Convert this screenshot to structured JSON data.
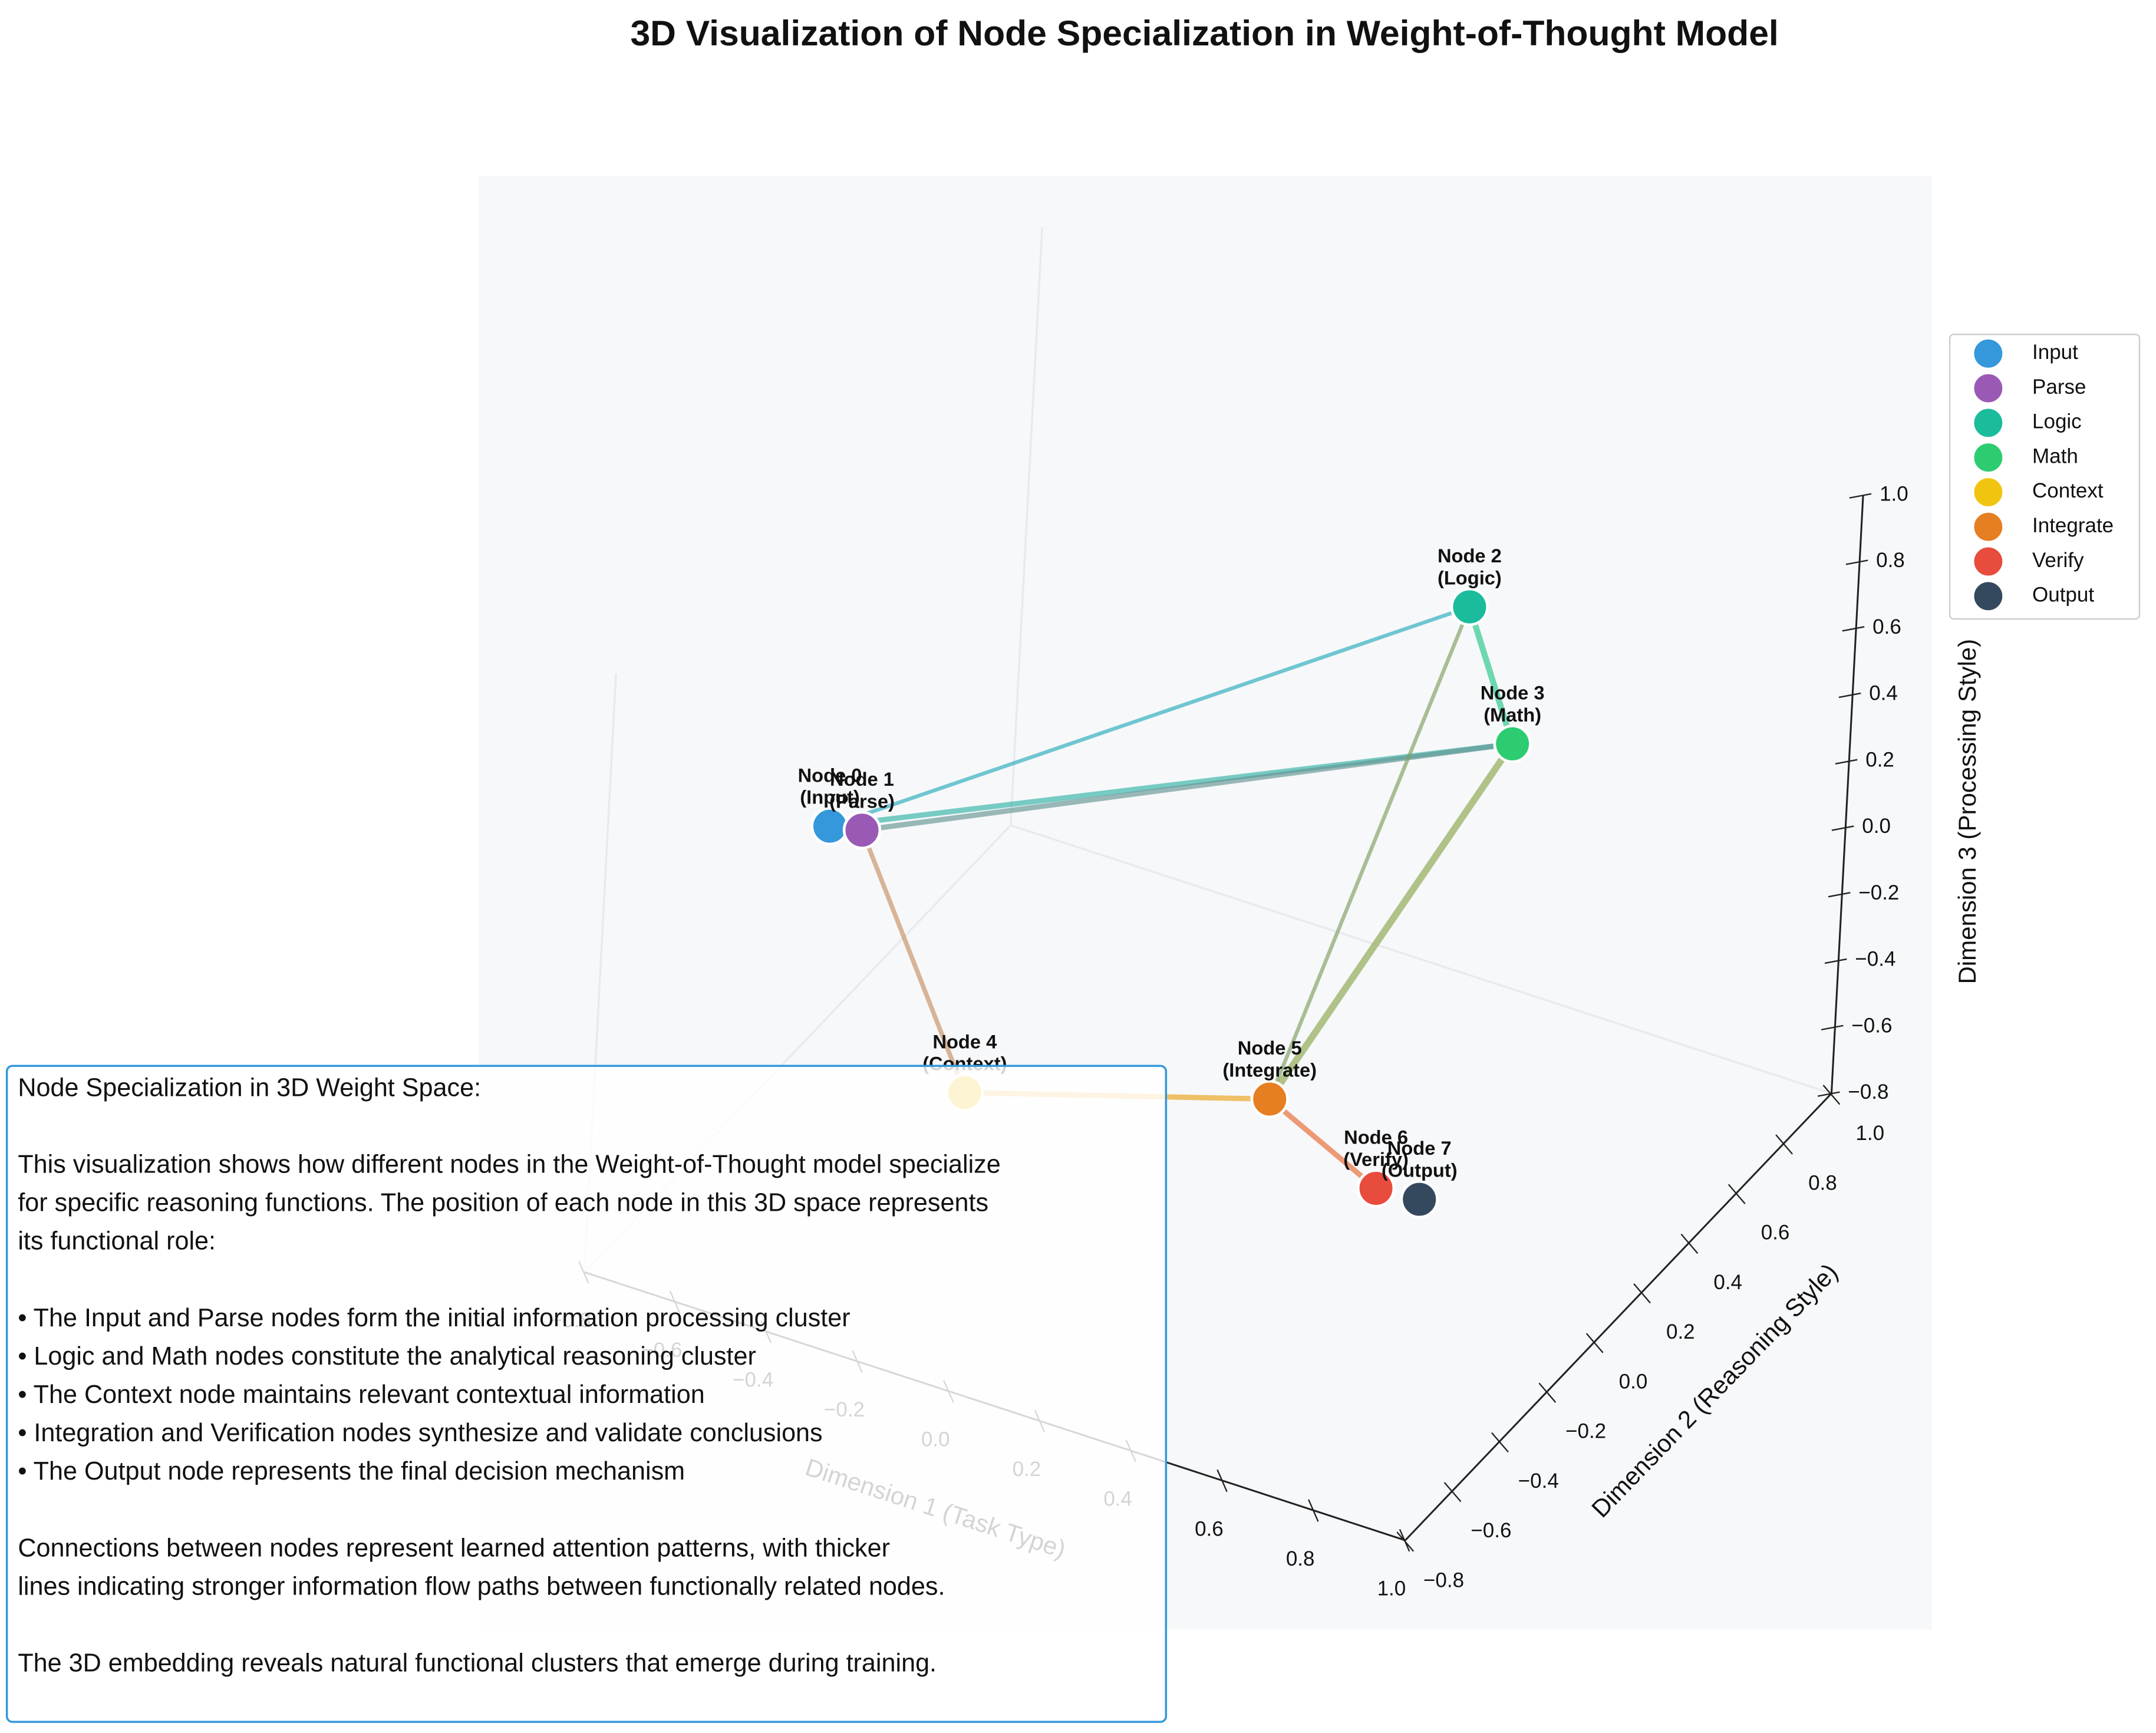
{
  "chart_data": {
    "type": "scatter3d",
    "title": "3D Visualization of Node Specialization in Weight-of-Thought Model",
    "xlabel": "Dimension 1 (Task Type)",
    "ylabel": "Dimension 2 (Reasoning Style)",
    "zlabel": "Dimension 3 (Processing Style)",
    "xlim": [
      -0.8,
      1.0
    ],
    "ylim": [
      -0.8,
      1.0
    ],
    "zlim": [
      -0.8,
      1.0
    ],
    "xticks": [
      {
        "value": -0.8,
        "label": "−0.8"
      },
      {
        "value": -0.6,
        "label": "−0.6"
      },
      {
        "value": -0.4,
        "label": "−0.4"
      },
      {
        "value": -0.2,
        "label": "−0.2"
      },
      {
        "value": 0,
        "label": "0.0"
      },
      0.2,
      0.4,
      0.6,
      0.8,
      {
        "value": 1,
        "label": "1.0"
      }
    ],
    "yticks": [
      {
        "value": -0.8,
        "label": "−0.8"
      },
      {
        "value": -0.6,
        "label": "−0.6"
      },
      {
        "value": -0.4,
        "label": "−0.4"
      },
      {
        "value": -0.2,
        "label": "−0.2"
      },
      {
        "value": 0,
        "label": "0.0"
      },
      0.2,
      0.4,
      0.6,
      0.8,
      {
        "value": 1,
        "label": "1.0"
      }
    ],
    "zticks": [
      {
        "value": -0.8,
        "label": "−0.8"
      },
      {
        "value": -0.6,
        "label": "−0.6"
      },
      {
        "value": -0.4,
        "label": "−0.4"
      },
      {
        "value": -0.2,
        "label": "−0.2"
      },
      {
        "value": 0,
        "label": "0.0"
      },
      0.2,
      0.4,
      0.6,
      0.8,
      {
        "value": 1,
        "label": "1.0"
      }
    ],
    "series": [
      {
        "name": "Input",
        "color": "#3498db",
        "x": -0.5,
        "y": -0.43,
        "z": 0.4,
        "label": [
          "Node 0",
          "(Input)"
        ]
      },
      {
        "name": "Parse",
        "color": "#9b59b6",
        "x": -0.44,
        "y": -0.41,
        "z": 0.4,
        "label": [
          "Node 1",
          "(Parse)"
        ]
      },
      {
        "name": "Logic",
        "color": "#1abc9c",
        "x": 0.42,
        "y": 0.47,
        "z": 0.8,
        "label": [
          "Node 2",
          "(Logic)"
        ]
      },
      {
        "name": "Math",
        "color": "#2ecc71",
        "x": 0.61,
        "y": 0.3,
        "z": 0.6,
        "label": [
          "Node 3",
          "(Math)"
        ]
      },
      {
        "name": "Context",
        "color": "#f1c40f",
        "x": -0.15,
        "y": -0.49,
        "z": -0.2,
        "label": [
          "Node 4",
          "(Context)"
        ]
      },
      {
        "name": "Integrate",
        "color": "#e67e22",
        "x": 0.32,
        "y": -0.1,
        "z": -0.3,
        "label": [
          "Node 5",
          "(Integrate)"
        ]
      },
      {
        "name": "Verify",
        "color": "#e74c3c",
        "x": 0.54,
        "y": -0.06,
        "z": -0.5,
        "label": [
          "Node 6",
          "(Verify)"
        ]
      },
      {
        "name": "Output",
        "color": "#34495e",
        "x": 0.63,
        "y": -0.05,
        "z": -0.5,
        "label": [
          "Node 7",
          "(Output)"
        ]
      }
    ],
    "edges": [
      {
        "source": 0,
        "target": 2,
        "weight": 0.5
      },
      {
        "source": 0,
        "target": 3,
        "weight": 0.7
      },
      {
        "source": 1,
        "target": 3,
        "weight": 0.7
      },
      {
        "source": 1,
        "target": 4,
        "weight": 0.6
      },
      {
        "source": 2,
        "target": 3,
        "weight": 0.8
      },
      {
        "source": 2,
        "target": 5,
        "weight": 0.5
      },
      {
        "source": 3,
        "target": 5,
        "weight": 0.9
      },
      {
        "source": 4,
        "target": 5,
        "weight": 0.7
      },
      {
        "source": 5,
        "target": 6,
        "weight": 0.7
      }
    ],
    "annotation": [
      [
        "Node Specialization in 3D Weight Space:"
      ],
      [
        "This visualization shows how different nodes in the Weight-of-Thought model specialize",
        "for specific reasoning functions. The position of each node in this 3D space represents",
        "its functional role:"
      ],
      [
        "• The Input and Parse nodes form the initial information processing cluster",
        "• Logic and Math nodes constitute the analytical reasoning cluster",
        "• The Context node maintains relevant contextual information",
        "• Integration and Verification nodes synthesize and validate conclusions",
        "• The Output node represents the final decision mechanism"
      ],
      [
        "Connections between nodes represent learned attention patterns, with thicker",
        "lines indicating stronger information flow paths between functionally related nodes."
      ],
      [
        "The 3D embedding reveals natural functional clusters that emerge during training."
      ]
    ]
  }
}
